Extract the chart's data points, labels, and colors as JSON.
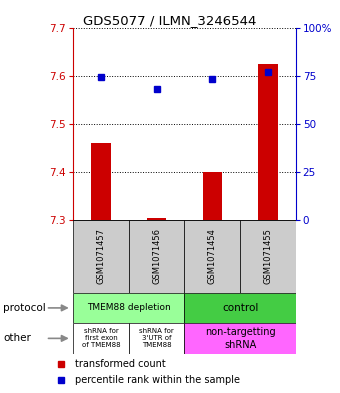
{
  "title": "GDS5077 / ILMN_3246544",
  "samples": [
    "GSM1071457",
    "GSM1071456",
    "GSM1071454",
    "GSM1071455"
  ],
  "bar_values": [
    7.46,
    7.305,
    7.4,
    7.625
  ],
  "bar_base": 7.3,
  "dot_values": [
    7.598,
    7.572,
    7.594,
    7.608
  ],
  "ylim": [
    7.3,
    7.7
  ],
  "yticks_left": [
    7.3,
    7.4,
    7.5,
    7.6,
    7.7
  ],
  "yticks_right_vals": [
    0,
    25,
    50,
    75,
    100
  ],
  "yticks_right_labels": [
    "0",
    "25",
    "50",
    "75",
    "100%"
  ],
  "bar_color": "#cc0000",
  "dot_color": "#0000cc",
  "bg_color": "#cccccc",
  "protocol_depletion_color": "#99ff99",
  "protocol_control_color": "#44cc44",
  "other_white_color": "#ffffff",
  "other_pink_color": "#ff66ff",
  "legend_bar_label": "transformed count",
  "legend_dot_label": "percentile rank within the sample"
}
